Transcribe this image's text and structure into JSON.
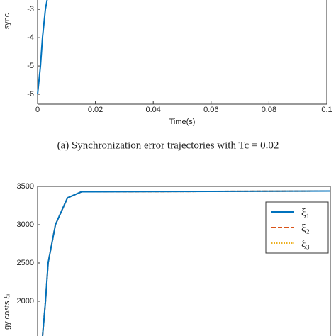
{
  "chart_data": [
    {
      "type": "line",
      "ylabel": "sync",
      "xlabel": "Time(s)",
      "caption": "(a) Synchronization error trajectories with Tc = 0.02",
      "xlim": [
        0,
        0.1
      ],
      "xticks": [
        0,
        0.02,
        0.04,
        0.06,
        0.08,
        0.1
      ],
      "ylim": [
        -6.35,
        -2.67
      ],
      "yticks": [
        -6,
        -5,
        -4,
        -3
      ],
      "series": [
        {
          "color": "#0072bd",
          "x": [
            0,
            0.001,
            0.0017,
            0.0027,
            0.0033
          ],
          "values": [
            -6,
            -5,
            -4,
            -3,
            -2.67
          ]
        }
      ]
    },
    {
      "type": "line",
      "ylabel": "gy costs ξᵢ",
      "xlim": [
        0,
        0.1
      ],
      "ylim": [
        1546,
        3500
      ],
      "yticks": [
        2000,
        2500,
        3000,
        3500
      ],
      "legend": "upper right",
      "series": [
        {
          "name": "ξ₁",
          "color": "#0072bd",
          "dash": "solid",
          "x": [
            0.0017,
            0.0027,
            0.0036,
            0.0061,
            0.0102,
            0.015,
            0.1
          ],
          "values": [
            1546,
            2000,
            2500,
            3000,
            3350,
            3430,
            3440
          ]
        },
        {
          "name": "ξ₂",
          "color": "#d95319",
          "dash": "dashed",
          "x": [
            0.0017,
            0.0027,
            0.0036,
            0.0061,
            0.0102,
            0.015,
            0.1
          ],
          "values": [
            1546,
            2000,
            2500,
            3000,
            3350,
            3430,
            3440
          ]
        },
        {
          "name": "ξ₃",
          "color": "#edb120",
          "dash": "dotted",
          "x": [
            0.0017,
            0.0027,
            0.0036,
            0.0061,
            0.0102,
            0.015,
            0.1
          ],
          "values": [
            1546,
            2000,
            2500,
            3000,
            3350,
            3430,
            3440
          ]
        }
      ]
    }
  ]
}
